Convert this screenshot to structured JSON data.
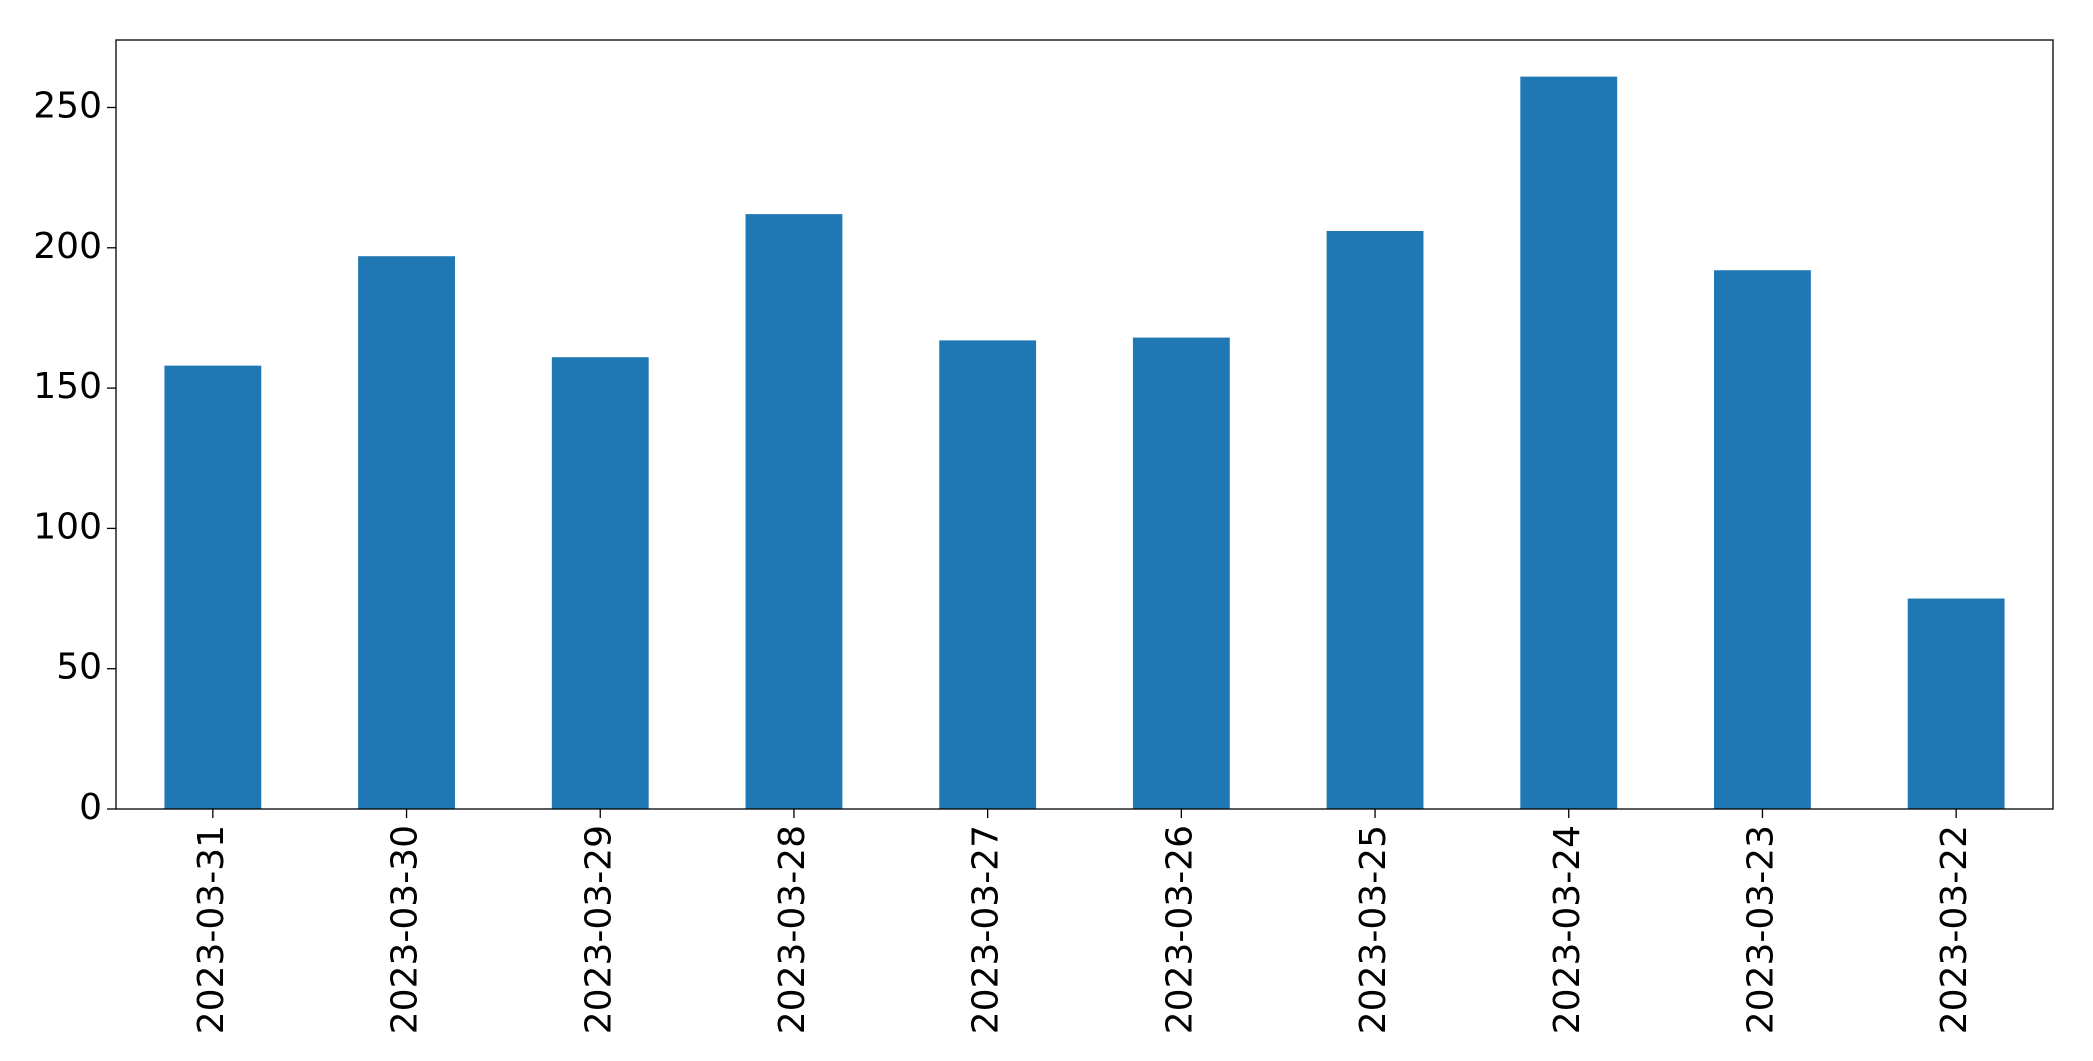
{
  "chart_data": {
    "type": "bar",
    "categories": [
      "2023-03-31",
      "2023-03-30",
      "2023-03-29",
      "2023-03-28",
      "2023-03-27",
      "2023-03-26",
      "2023-03-25",
      "2023-03-24",
      "2023-03-23",
      "2023-03-22"
    ],
    "values": [
      158,
      197,
      161,
      212,
      167,
      168,
      206,
      261,
      192,
      75
    ],
    "color": "#1f77b4",
    "ylim": [
      0,
      274.05
    ],
    "yticks": [
      0,
      50,
      100,
      150,
      200,
      250
    ],
    "grid": false
  }
}
